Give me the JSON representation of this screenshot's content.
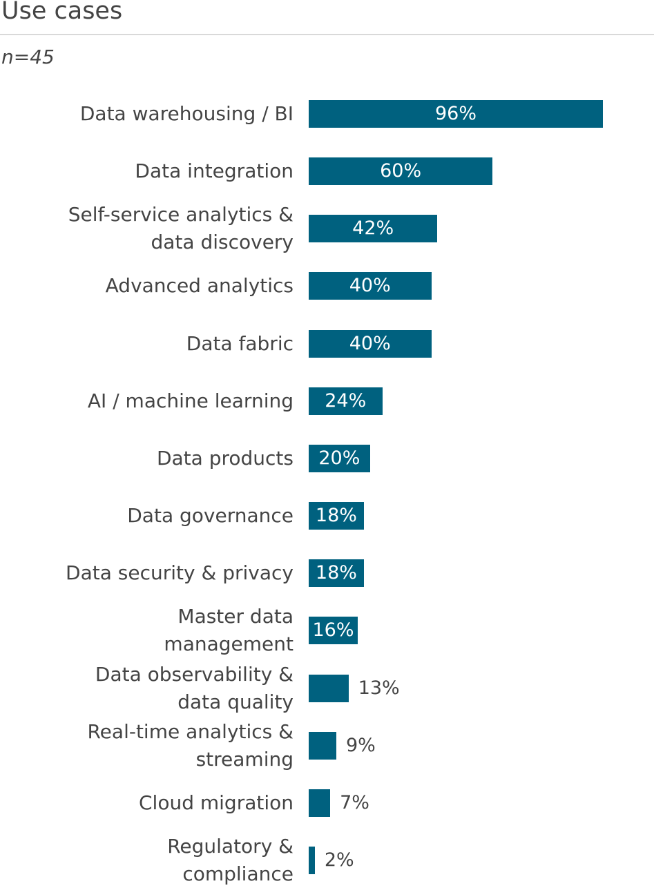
{
  "header": {
    "title": "Use cases",
    "sample": "n=45"
  },
  "chart_data": {
    "type": "bar",
    "orientation": "horizontal",
    "title": "Use cases",
    "subtitle": "n=45",
    "categories": [
      "Data warehousing / BI",
      "Data integration",
      "Self-service analytics & data discovery",
      "Advanced analytics",
      "Data fabric",
      "AI / machine learning",
      "Data products",
      "Data governance",
      "Data security & privacy",
      "Master data management",
      "Data observability & data quality",
      "Real-time analytics & streaming",
      "Cloud migration",
      "Regulatory & compliance"
    ],
    "category_lines": [
      [
        "Data warehousing / BI"
      ],
      [
        "Data integration"
      ],
      [
        "Self-service analytics &",
        "data discovery"
      ],
      [
        "Advanced analytics"
      ],
      [
        "Data fabric"
      ],
      [
        "AI / machine learning"
      ],
      [
        "Data products"
      ],
      [
        "Data governance"
      ],
      [
        "Data security & privacy"
      ],
      [
        "Master data",
        "management"
      ],
      [
        "Data observability &",
        "data quality"
      ],
      [
        "Real-time analytics &",
        "streaming"
      ],
      [
        "Cloud migration"
      ],
      [
        "Regulatory &",
        "compliance"
      ]
    ],
    "values": [
      96,
      60,
      42,
      40,
      40,
      24,
      20,
      18,
      18,
      16,
      13,
      9,
      7,
      2
    ],
    "value_labels": [
      "96%",
      "60%",
      "42%",
      "40%",
      "40%",
      "24%",
      "20%",
      "18%",
      "18%",
      "16%",
      "13%",
      "9%",
      "7%",
      "2%"
    ],
    "xlim": [
      0,
      100
    ],
    "grid": false,
    "color": "#00617f"
  }
}
